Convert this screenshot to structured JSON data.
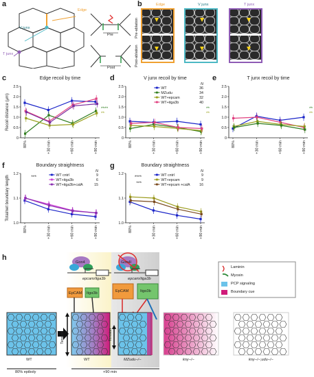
{
  "panels": {
    "a": {
      "letter": "a",
      "labels": {
        "edge": "Edge",
        "vjunx": "V junx",
        "tjunx": "T junx",
        "pre": "Pre",
        "post": "Post"
      }
    },
    "b": {
      "letter": "b",
      "columns": [
        "Edge",
        "V junx",
        "T junx"
      ],
      "row_labels": [
        "Pre-ablation",
        "Post-ablation"
      ],
      "frame_colors": {
        "edge": "#f0a030",
        "vjunx": "#4cb8c4",
        "tjunx": "#8e5bb5"
      }
    },
    "c": {
      "letter": "c",
      "title": "Edge recoil by time",
      "ylabel": "Recoil distance (μm)"
    },
    "d": {
      "letter": "d",
      "title": "V junx recoil by time"
    },
    "e": {
      "letter": "e",
      "title": "T junx recoil by time"
    },
    "f": {
      "letter": "f",
      "title": "Boundary straightness",
      "ylabel": "Total/net boundary length"
    },
    "g": {
      "letter": "g",
      "title": "Boundary straightness"
    },
    "h": {
      "letter": "h",
      "gene_labels": [
        "Gon4",
        "Gon4l"
      ],
      "promoter_labels": [
        "epcam/itga3b",
        "epcam/itga3b"
      ],
      "protein_labels": {
        "epcam1": "EpCAM",
        "itga1": "Itgα3b",
        "epcam2": "EpCAM",
        "itga2": "Itgα3b"
      },
      "legend": [
        "Laminin",
        "Myosin",
        "PCP signaling",
        "Boundary cue"
      ],
      "tension": "Tension",
      "tissue_labels": [
        "WT",
        "WT",
        "MZudu−/−",
        "kny−/−",
        "kny−/−;udu−/−"
      ],
      "stage_labels": [
        "80% epiboly",
        "+90 min"
      ]
    }
  },
  "chart_data": [
    {
      "type": "line",
      "title": "Edge recoil by time",
      "categories": [
        "80%",
        "+30 min",
        "+60 min",
        "+90 min"
      ],
      "ylabel": "Recoil distance (μm)",
      "ylim": [
        0,
        2.5
      ],
      "yticks": [
        "0",
        "0.5",
        "1.0",
        "1.5",
        "2.0",
        "2.5"
      ],
      "series": [
        {
          "color": "#1a24c8",
          "values": [
            1.7,
            1.35,
            1.8,
            1.75
          ]
        },
        {
          "color": "#2f7d1e",
          "values": [
            0.2,
            1.1,
            0.7,
            1.3
          ]
        },
        {
          "color": "#e0407f",
          "values": [
            1.3,
            0.8,
            1.6,
            1.9
          ]
        },
        {
          "color": "#9aa11f",
          "values": [
            0.95,
            0.6,
            0.65,
            1.2
          ]
        },
        {
          "color": "#7a2fa0",
          "values": [
            1.25,
            0.75,
            1.55,
            1.65
          ]
        }
      ],
      "annotations": [
        "****",
        "**"
      ]
    },
    {
      "type": "line",
      "title": "V junx recoil by time",
      "categories": [
        "80%",
        "+30 min",
        "+60 min",
        "+90 min"
      ],
      "ylim": [
        0,
        2.5
      ],
      "yticks": [
        "0",
        "0.5",
        "1.0",
        "1.5",
        "2.0",
        "2.5"
      ],
      "legend_header": "N",
      "series": [
        {
          "name": "WT",
          "n": "36",
          "color": "#1a24c8",
          "values": [
            0.8,
            0.75,
            0.8,
            0.65
          ]
        },
        {
          "name": "MZudu",
          "n": "34",
          "color": "#2f7d1e",
          "values": [
            0.45,
            0.65,
            0.5,
            0.3
          ]
        },
        {
          "name": "WT+epcam",
          "n": "32",
          "color": "#9aa11f",
          "values": [
            0.6,
            0.55,
            0.45,
            0.35
          ]
        },
        {
          "name": "WT+itga3b",
          "n": "40",
          "color": "#e0407f",
          "values": [
            0.7,
            0.75,
            0.5,
            0.45
          ]
        }
      ],
      "annotations": [
        "**",
        "**"
      ]
    },
    {
      "type": "line",
      "title": "T junx recoil by time",
      "categories": [
        "80%",
        "+30 min",
        "+60 min",
        "+90 min"
      ],
      "ylim": [
        0,
        2.5
      ],
      "yticks": [
        "0",
        "0.5",
        "1.0",
        "1.5",
        "2.0",
        "2.5"
      ],
      "series": [
        {
          "color": "#1a24c8",
          "values": [
            0.45,
            1.05,
            0.85,
            1.0
          ]
        },
        {
          "color": "#e0407f",
          "values": [
            0.95,
            1.0,
            0.75,
            0.5
          ]
        },
        {
          "color": "#9aa11f",
          "values": [
            0.55,
            0.8,
            0.65,
            0.55
          ]
        },
        {
          "color": "#2f7d1e",
          "values": [
            0.5,
            0.7,
            0.6,
            0.4
          ]
        }
      ],
      "annotations": [
        "**",
        "**"
      ]
    },
    {
      "type": "line",
      "title": "Boundary straightness",
      "categories": [
        "80%",
        "+30 min",
        "+60 min",
        "+90 min"
      ],
      "ylabel": "Total/net boundary length",
      "ylim": [
        1.0,
        1.2
      ],
      "yticks": [
        "1.0",
        "1.1",
        "1.2"
      ],
      "legend_header": "N",
      "series": [
        {
          "name": "WT cntrl",
          "n": "9",
          "color": "#1a24c8",
          "values": [
            1.09,
            1.055,
            1.035,
            1.025
          ]
        },
        {
          "name": "WT+itga3b",
          "n": "6",
          "color": "#cc3fd4",
          "values": [
            1.1,
            1.075,
            1.05,
            1.04
          ]
        },
        {
          "name": "WT+itga3b+calA",
          "n": "15",
          "color": "#8a2fb0",
          "values": [
            1.1,
            1.07,
            1.048,
            1.04
          ]
        }
      ],
      "annotations": [
        "***"
      ]
    },
    {
      "type": "line",
      "title": "Boundary straightness",
      "categories": [
        "80%",
        "+30 min",
        "+60 min",
        "+90 min"
      ],
      "ylim": [
        1.0,
        1.2
      ],
      "yticks": [
        "1.0",
        "1.1",
        "1.2"
      ],
      "legend_header": "N",
      "series": [
        {
          "name": "WT cntrl",
          "n": "9",
          "color": "#1a24c8",
          "values": [
            1.085,
            1.05,
            1.03,
            1.015
          ]
        },
        {
          "name": "WT+epcam",
          "n": "9",
          "color": "#9a9a1a",
          "values": [
            1.105,
            1.1,
            1.065,
            1.045
          ]
        },
        {
          "name": "WT+epcam +calA",
          "n": "16",
          "color": "#7a4a1e",
          "values": [
            1.09,
            1.085,
            1.055,
            1.035
          ]
        }
      ],
      "annotations": [
        "****",
        "***"
      ]
    }
  ]
}
